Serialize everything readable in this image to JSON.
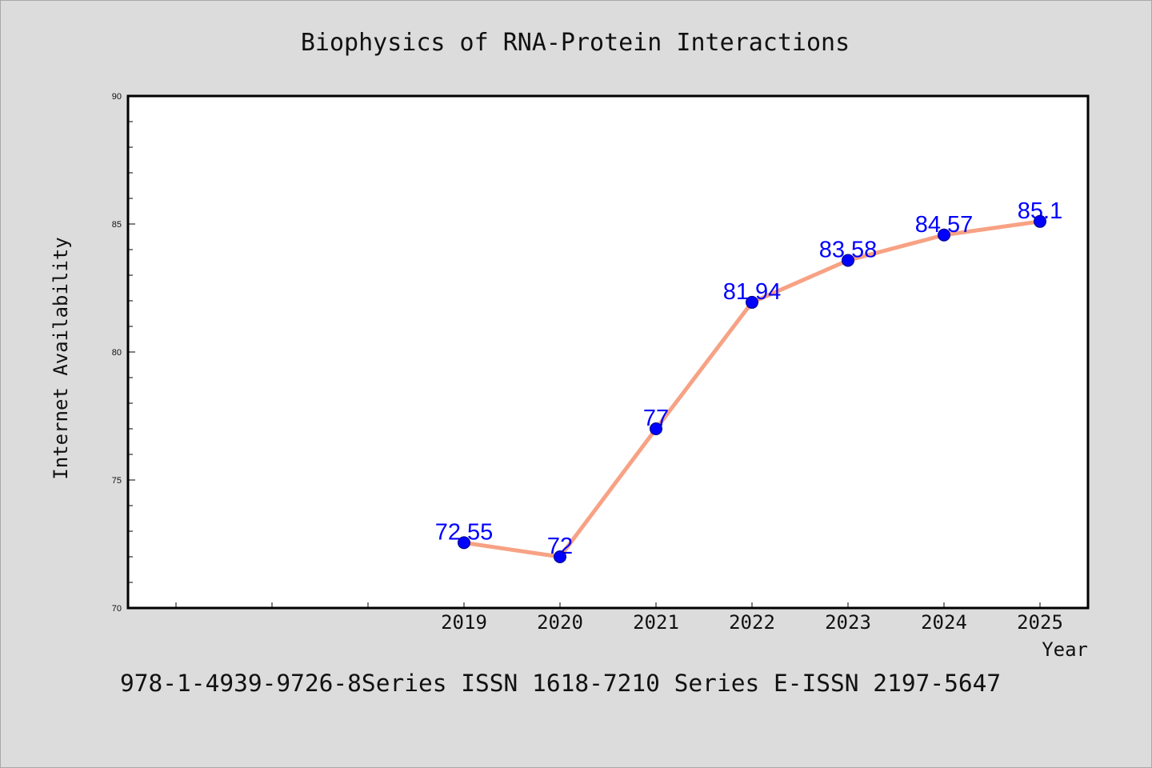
{
  "footer_text": "978-1-4939-9726-8Series ISSN 1618-7210 Series E-ISSN 2197-5647",
  "colors": {
    "background": "#dcdcdc",
    "plot_background": "#ffffff",
    "frame": "#000000",
    "line": "#f7a284",
    "marker_fill": "#0000ff",
    "marker_edge": "#00007a",
    "data_label": "#0000ff"
  },
  "chart_data": {
    "type": "line",
    "title": "Biophysics of RNA-Protein Interactions",
    "xlabel": "Year",
    "ylabel": "Internet Availability",
    "categories": [
      "2019",
      "2020",
      "2021",
      "2022",
      "2023",
      "2024",
      "2025"
    ],
    "x": [
      2019,
      2020,
      2021,
      2022,
      2023,
      2024,
      2025
    ],
    "series": [
      {
        "values": [
          72.55,
          72,
          77,
          81.94,
          83.58,
          84.57,
          85.1
        ]
      }
    ],
    "show_data_labels": true,
    "xlim": [
      2015.5,
      2025.5
    ],
    "ylim": [
      70,
      90
    ],
    "yticks": [
      70,
      75,
      80,
      85,
      90
    ],
    "y_minor_step": 1,
    "grid": false,
    "legend": "none"
  }
}
